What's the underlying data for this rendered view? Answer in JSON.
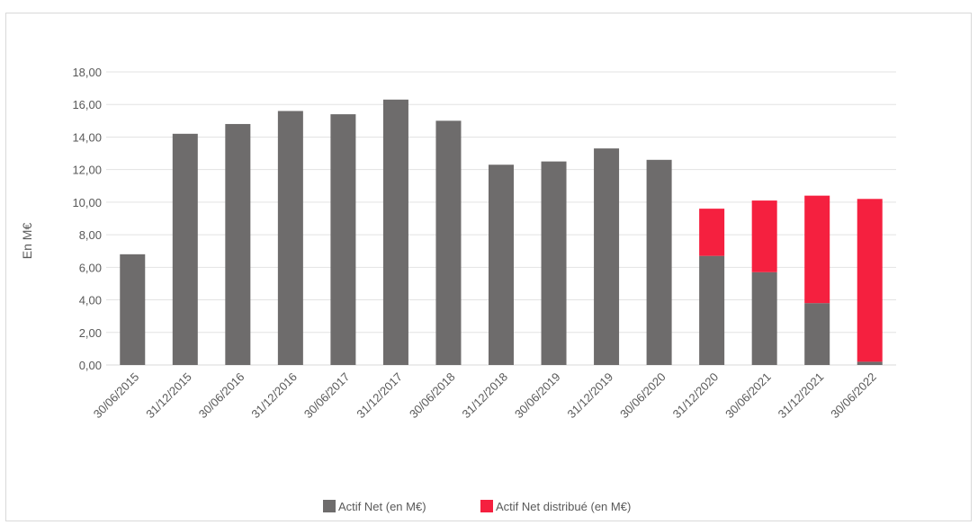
{
  "chart_data": {
    "type": "bar",
    "stacked": true,
    "title": "",
    "xlabel": "",
    "ylabel": "En M€",
    "ylim": [
      0,
      18
    ],
    "ytick_step": 2,
    "ytick_labels": [
      "0,00",
      "2,00",
      "4,00",
      "6,00",
      "8,00",
      "10,00",
      "12,00",
      "14,00",
      "16,00",
      "18,00"
    ],
    "grid": true,
    "legend_position": "bottom",
    "categories": [
      "30/06/2015",
      "31/12/2015",
      "30/06/2016",
      "31/12/2016",
      "30/06/2017",
      "31/12/2017",
      "30/06/2018",
      "31/12/2018",
      "30/06/2019",
      "31/12/2019",
      "30/06/2020",
      "31/12/2020",
      "30/06/2021",
      "31/12/2021",
      "30/06/2022"
    ],
    "series": [
      {
        "name": "Actif Net (en M€)",
        "color": "#6e6c6c",
        "values": [
          6.8,
          14.2,
          14.8,
          15.6,
          15.4,
          16.3,
          15.0,
          12.3,
          12.5,
          13.3,
          12.6,
          6.7,
          5.7,
          3.8,
          0.2
        ]
      },
      {
        "name": "Actif Net distribué (en M€)",
        "color": "#f5203f",
        "values": [
          0,
          0,
          0,
          0,
          0,
          0,
          0,
          0,
          0,
          0,
          0,
          2.9,
          4.4,
          6.6,
          10.0
        ]
      }
    ]
  }
}
